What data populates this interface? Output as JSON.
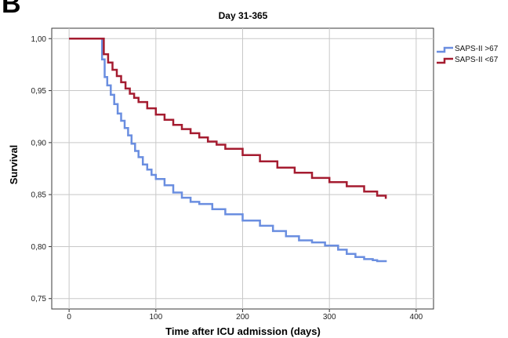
{
  "panel_label": "B",
  "chart_data": {
    "type": "line",
    "title": "Day 31-365",
    "xlabel": "Time after ICU admission (days)",
    "ylabel": "Survival",
    "xlim": [
      -20,
      420
    ],
    "ylim": [
      0.74,
      1.01
    ],
    "xticks": [
      0,
      100,
      200,
      300,
      400
    ],
    "xtick_labels": [
      "0",
      "100",
      "200",
      "300",
      "400"
    ],
    "yticks": [
      0.75,
      0.8,
      0.85,
      0.9,
      0.95,
      1.0
    ],
    "ytick_labels": [
      "0,75",
      "0,80",
      "0,85",
      "0,90",
      "0,95",
      "1,00"
    ],
    "grid": true,
    "legend_position": "top-right",
    "series": [
      {
        "name": "SAPS-II >67",
        "color": "#6a8ee0",
        "step": true,
        "x": [
          0,
          35,
          38,
          41,
          44,
          48,
          52,
          56,
          60,
          64,
          68,
          72,
          76,
          80,
          85,
          90,
          95,
          100,
          110,
          120,
          130,
          140,
          150,
          165,
          180,
          200,
          220,
          235,
          250,
          265,
          280,
          295,
          310,
          320,
          330,
          340,
          350,
          355,
          365
        ],
        "y": [
          1.0,
          1.0,
          0.98,
          0.963,
          0.955,
          0.946,
          0.937,
          0.928,
          0.921,
          0.914,
          0.907,
          0.899,
          0.892,
          0.886,
          0.879,
          0.874,
          0.869,
          0.865,
          0.859,
          0.852,
          0.847,
          0.843,
          0.841,
          0.836,
          0.831,
          0.825,
          0.82,
          0.815,
          0.81,
          0.806,
          0.804,
          0.801,
          0.797,
          0.793,
          0.79,
          0.788,
          0.787,
          0.786,
          0.785
        ]
      },
      {
        "name": "SAPS-II <67",
        "color": "#a51c30",
        "step": true,
        "x": [
          0,
          35,
          40,
          45,
          50,
          55,
          60,
          65,
          70,
          75,
          80,
          90,
          100,
          110,
          120,
          130,
          140,
          150,
          160,
          170,
          180,
          200,
          220,
          240,
          260,
          280,
          300,
          320,
          340,
          355,
          365
        ],
        "y": [
          1.0,
          1.0,
          0.985,
          0.977,
          0.97,
          0.964,
          0.958,
          0.952,
          0.947,
          0.943,
          0.939,
          0.933,
          0.927,
          0.922,
          0.917,
          0.913,
          0.909,
          0.905,
          0.901,
          0.898,
          0.894,
          0.888,
          0.882,
          0.876,
          0.871,
          0.866,
          0.862,
          0.858,
          0.853,
          0.849,
          0.846
        ]
      }
    ]
  }
}
